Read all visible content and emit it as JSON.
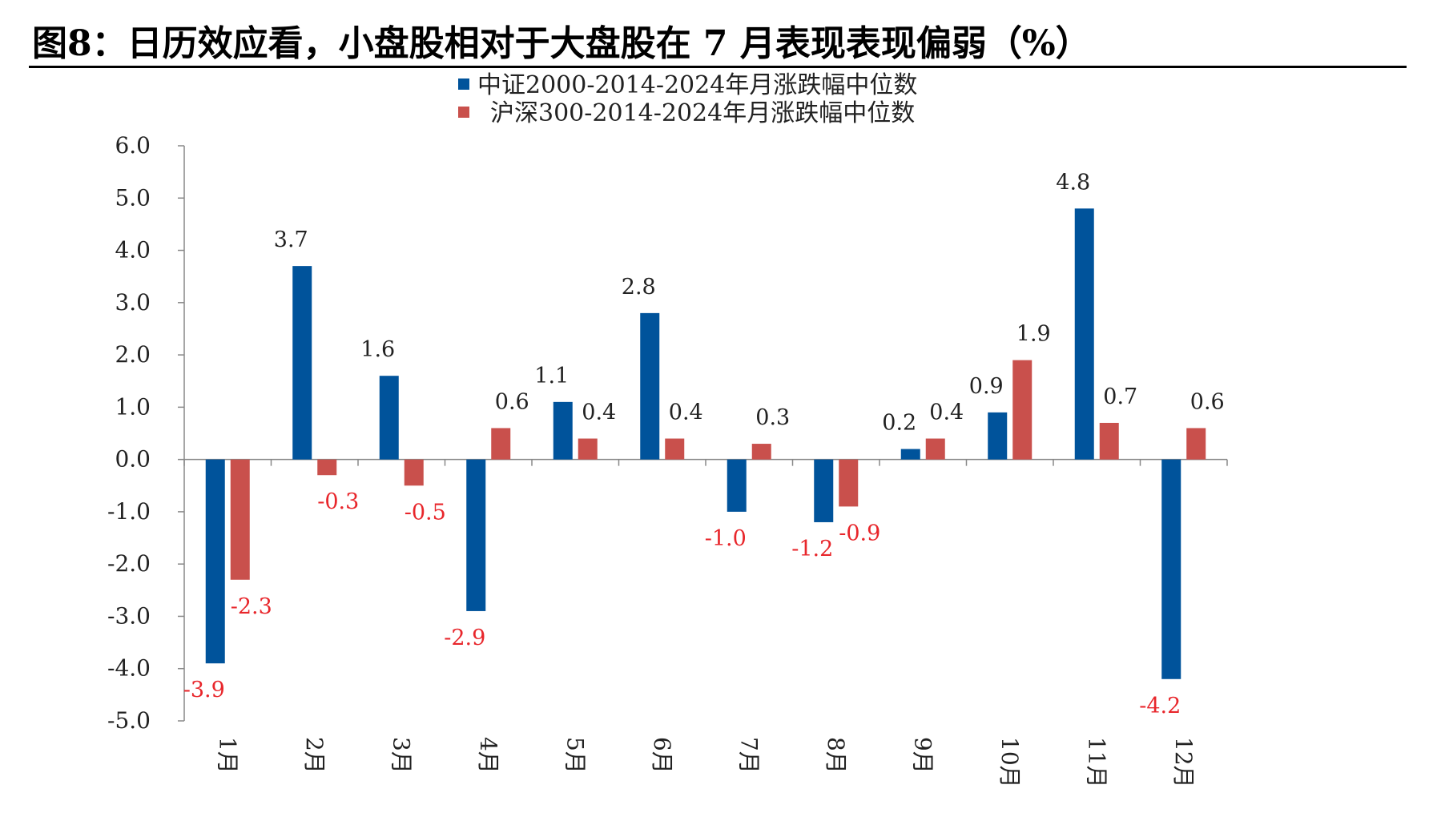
{
  "title": "图8：日历效应看，小盘股相对于大盘股在 7 月表现表现偏弱（%）",
  "colors": {
    "series1": "#00539B",
    "series2": "#C9504C",
    "negative_label": "#E8262B",
    "positive_label": "#222222"
  },
  "chart_data": {
    "type": "bar",
    "categories": [
      "1月",
      "2月",
      "3月",
      "4月",
      "5月",
      "6月",
      "7月",
      "8月",
      "9月",
      "10月",
      "11月",
      "12月"
    ],
    "series": [
      {
        "name": "中证2000-2014-2024年月涨跌幅中位数",
        "values": [
          -3.9,
          3.7,
          1.6,
          -2.9,
          1.1,
          2.8,
          -1.0,
          -1.2,
          0.2,
          0.9,
          4.8,
          -4.2
        ]
      },
      {
        "name": "沪深300-2014-2024年月涨跌幅中位数",
        "values": [
          -2.3,
          -0.3,
          -0.5,
          0.6,
          0.4,
          0.4,
          0.3,
          -0.9,
          0.4,
          1.9,
          0.7,
          0.6
        ]
      }
    ],
    "ylim": [
      -5.0,
      6.0
    ],
    "yticks": [
      "6.0",
      "5.0",
      "4.0",
      "3.0",
      "2.0",
      "1.0",
      "0.0",
      "-1.0",
      "-2.0",
      "-3.0",
      "-4.0",
      "-5.0"
    ],
    "legend_position": "top-center",
    "grid": false
  }
}
